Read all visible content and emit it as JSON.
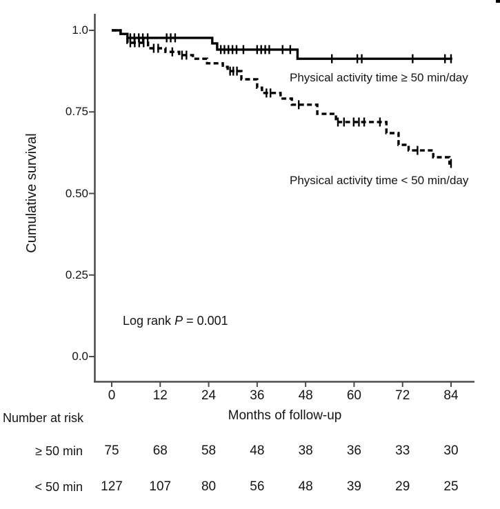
{
  "chart_data": {
    "type": "line",
    "subtype": "kaplan-meier-step",
    "title": "",
    "xlabel": "Months of follow-up",
    "ylabel": "Cumulative survival",
    "xlim": [
      0,
      84
    ],
    "ylim": [
      0.0,
      1.0
    ],
    "grid": false,
    "legend_position": "inline-labels",
    "x_ticks": [
      0,
      12,
      24,
      36,
      48,
      60,
      72,
      84
    ],
    "y_tick_labels": [
      "1.0",
      "0.75",
      "0.50",
      "0.25",
      "0.0"
    ],
    "y_tick_values": [
      1.0,
      0.75,
      0.5,
      0.25,
      0.0
    ],
    "annotation": {
      "prefix": "Log rank ",
      "italic_var": "P",
      "suffix": " = 0.001"
    },
    "colors": {
      "line": "#000000",
      "axis": "#4a4a4a",
      "text": "#141414"
    },
    "series": [
      {
        "name": "Physical activity time ≥ 50 min/day",
        "style": "solid",
        "steps": [
          [
            0,
            1.0
          ],
          [
            2.2,
            0.989
          ],
          [
            3.9,
            0.977
          ],
          [
            24.9,
            0.96
          ],
          [
            26.1,
            0.941
          ],
          [
            46.0,
            0.913
          ],
          [
            84.3,
            0.913
          ]
        ],
        "censor_marks": [
          [
            4.6,
            0.977
          ],
          [
            5.6,
            0.977
          ],
          [
            6.7,
            0.977
          ],
          [
            7.7,
            0.977
          ],
          [
            8.9,
            0.977
          ],
          [
            13.6,
            0.977
          ],
          [
            14.6,
            0.977
          ],
          [
            15.7,
            0.977
          ],
          [
            27.0,
            0.941
          ],
          [
            27.9,
            0.941
          ],
          [
            28.9,
            0.941
          ],
          [
            29.9,
            0.941
          ],
          [
            30.9,
            0.941
          ],
          [
            32.6,
            0.941
          ],
          [
            36.0,
            0.941
          ],
          [
            37.0,
            0.941
          ],
          [
            38.0,
            0.941
          ],
          [
            39.0,
            0.941
          ],
          [
            42.3,
            0.941
          ],
          [
            44.2,
            0.941
          ],
          [
            54.5,
            0.913
          ],
          [
            60.8,
            0.913
          ],
          [
            61.9,
            0.913
          ],
          [
            74.5,
            0.913
          ],
          [
            82.5,
            0.913
          ],
          [
            84.0,
            0.913
          ]
        ]
      },
      {
        "name": "Physical activity time < 50 min/day",
        "style": "dashed",
        "steps": [
          [
            0,
            1.0
          ],
          [
            2.2,
            0.989
          ],
          [
            3.9,
            0.962
          ],
          [
            9.0,
            0.945
          ],
          [
            13.3,
            0.934
          ],
          [
            16.7,
            0.924
          ],
          [
            20.1,
            0.913
          ],
          [
            23.6,
            0.899
          ],
          [
            27.5,
            0.888
          ],
          [
            28.7,
            0.875
          ],
          [
            32.1,
            0.85
          ],
          [
            36.0,
            0.824
          ],
          [
            37.2,
            0.808
          ],
          [
            41.8,
            0.791
          ],
          [
            44.6,
            0.772
          ],
          [
            50.9,
            0.744
          ],
          [
            55.5,
            0.719
          ],
          [
            68.0,
            0.685
          ],
          [
            71.0,
            0.649
          ],
          [
            73.5,
            0.632
          ],
          [
            79.6,
            0.611
          ],
          [
            83.6,
            0.592
          ],
          [
            84.2,
            0.592
          ]
        ],
        "censor_marks": [
          [
            4.6,
            0.962
          ],
          [
            5.7,
            0.962
          ],
          [
            6.8,
            0.962
          ],
          [
            7.9,
            0.962
          ],
          [
            10.4,
            0.945
          ],
          [
            11.5,
            0.945
          ],
          [
            15.0,
            0.934
          ],
          [
            17.4,
            0.924
          ],
          [
            18.5,
            0.924
          ],
          [
            29.3,
            0.875
          ],
          [
            30.1,
            0.875
          ],
          [
            31.0,
            0.875
          ],
          [
            38.3,
            0.808
          ],
          [
            39.3,
            0.808
          ],
          [
            46.3,
            0.772
          ],
          [
            56.0,
            0.719
          ],
          [
            57.5,
            0.719
          ],
          [
            59.9,
            0.719
          ],
          [
            61.2,
            0.719
          ],
          [
            62.5,
            0.719
          ],
          [
            66.4,
            0.719
          ],
          [
            75.7,
            0.632
          ],
          [
            84.0,
            0.592
          ]
        ]
      }
    ],
    "number_at_risk": {
      "heading": "Number at risk",
      "time_points": [
        0,
        12,
        24,
        36,
        48,
        60,
        72,
        84
      ],
      "rows": [
        {
          "label": "≥ 50 min",
          "values": [
            75,
            68,
            58,
            48,
            38,
            36,
            33,
            30
          ]
        },
        {
          "label": "< 50 min",
          "values": [
            127,
            107,
            80,
            56,
            48,
            39,
            29,
            25
          ]
        }
      ]
    }
  }
}
